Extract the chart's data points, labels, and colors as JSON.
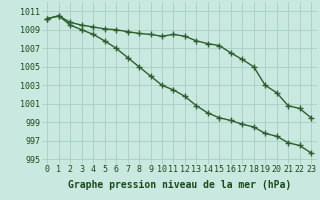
{
  "line1": [
    1010.2,
    1010.5,
    1009.8,
    1009.5,
    1009.3,
    1009.1,
    1009.0,
    1008.8,
    1008.6,
    1008.5,
    1008.3,
    1008.5,
    1008.3,
    1007.8,
    1007.5,
    1007.3,
    1006.5,
    1005.8,
    1005.0,
    1003.0,
    1002.2,
    1000.8,
    1000.5,
    999.5
  ],
  "line2": [
    1010.2,
    1010.5,
    1009.5,
    1009.0,
    1008.5,
    1007.8,
    1007.0,
    1006.0,
    1005.0,
    1004.0,
    1003.0,
    1002.5,
    1001.8,
    1000.8,
    1000.0,
    999.5,
    999.2,
    998.8,
    998.5,
    997.8,
    997.5,
    996.8,
    996.5,
    995.7
  ],
  "x": [
    0,
    1,
    2,
    3,
    4,
    5,
    6,
    7,
    8,
    9,
    10,
    11,
    12,
    13,
    14,
    15,
    16,
    17,
    18,
    19,
    20,
    21,
    22,
    23
  ],
  "ylim": [
    994.5,
    1012
  ],
  "yticks": [
    995,
    997,
    999,
    1001,
    1003,
    1005,
    1007,
    1009,
    1011
  ],
  "xticks": [
    0,
    1,
    2,
    3,
    4,
    5,
    6,
    7,
    8,
    9,
    10,
    11,
    12,
    13,
    14,
    15,
    16,
    17,
    18,
    19,
    20,
    21,
    22,
    23
  ],
  "xlabel": "Graphe pression niveau de la mer (hPa)",
  "line_color": "#2d5e2d",
  "marker": "+",
  "bg_color": "#c8e8e0",
  "grid_color": "#a0ccbc",
  "fig_bg": "#c8e8e0",
  "font_color": "#1a4a1a",
  "marker_size": 4,
  "line_width": 1.0,
  "xlabel_fontsize": 7,
  "tick_fontsize": 6
}
